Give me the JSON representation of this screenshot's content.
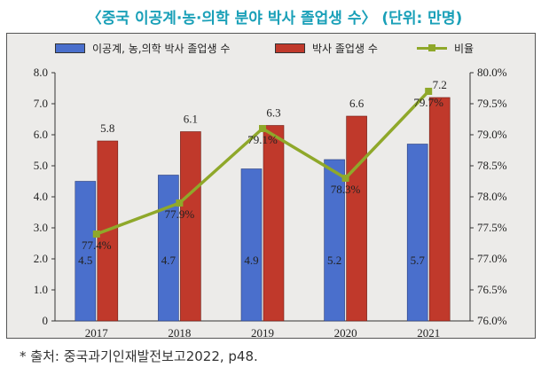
{
  "title": "〈중국 이공계·농·의학 분야 박사 졸업생 수〉 (단위: 만명)",
  "source": "* 출처: 중국과기인재발전보고2022, p48.",
  "colors": {
    "bar1": "#4a6fcc",
    "bar2": "#c0392b",
    "line": "#8fa82a",
    "title": "#1aa0b8"
  },
  "chart_data": {
    "type": "bar",
    "categories": [
      "2017",
      "2018",
      "2019",
      "2020",
      "2021"
    ],
    "series": [
      {
        "name": "이공계, 농,의학 박사 졸업생 수",
        "kind": "bar",
        "axis": "left",
        "values": [
          4.5,
          4.7,
          4.9,
          5.2,
          5.7
        ],
        "labels": [
          "4.5",
          "4.7",
          "4.9",
          "5.2",
          "5.7"
        ]
      },
      {
        "name": "박사 졸업생 수",
        "kind": "bar",
        "axis": "left",
        "values": [
          5.8,
          6.1,
          6.3,
          6.6,
          7.2
        ],
        "labels": [
          "5.8",
          "6.1",
          "6.3",
          "6.6",
          "7.2"
        ]
      },
      {
        "name": "비율",
        "kind": "line",
        "axis": "right",
        "values": [
          77.4,
          77.9,
          79.1,
          78.3,
          79.7
        ],
        "labels": [
          "77.4%",
          "77.9%",
          "79.1%",
          "78.3%",
          "79.7%"
        ]
      }
    ],
    "y_left": {
      "min": 0,
      "max": 8,
      "ticks": [
        "0",
        "1.0",
        "2.0",
        "3.0",
        "4.0",
        "5.0",
        "6.0",
        "7.0",
        "8.0"
      ]
    },
    "y_right": {
      "min": 76.0,
      "max": 80.0,
      "ticks": [
        "76.0%",
        "76.5%",
        "77.0%",
        "77.5%",
        "78.0%",
        "78.5%",
        "79.0%",
        "79.5%",
        "80.0%"
      ]
    },
    "grid": false,
    "legend_position": "top"
  }
}
